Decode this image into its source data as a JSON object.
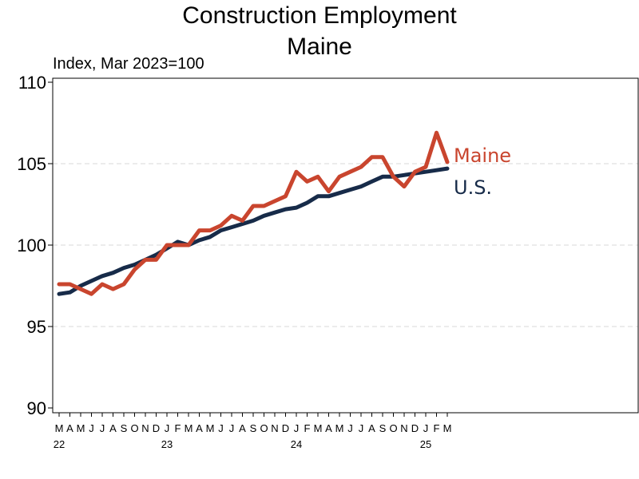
{
  "chart_data": {
    "type": "line",
    "title": "Construction Employment",
    "subtitle": "Maine",
    "ylabel": "Index, Mar 2023=100",
    "ylim": [
      90,
      110
    ],
    "yticks": [
      90,
      95,
      100,
      105,
      110
    ],
    "grid": "horizontal dashed",
    "x_month_labels": [
      "M",
      "A",
      "M",
      "J",
      "J",
      "A",
      "S",
      "O",
      "N",
      "D",
      "J",
      "F",
      "M",
      "A",
      "M",
      "J",
      "J",
      "A",
      "S",
      "O",
      "N",
      "D",
      "J",
      "F",
      "M",
      "A",
      "M",
      "J",
      "J",
      "A",
      "S",
      "O",
      "N",
      "D",
      "J",
      "F",
      "M"
    ],
    "x_year_labels": [
      {
        "label": "22",
        "index": 0
      },
      {
        "label": "23",
        "index": 10
      },
      {
        "label": "24",
        "index": 22
      },
      {
        "label": "25",
        "index": 34
      }
    ],
    "series": [
      {
        "name": "Maine",
        "color": "#C9452E",
        "values": [
          97.6,
          97.6,
          97.3,
          97.0,
          97.6,
          97.3,
          97.6,
          98.5,
          99.1,
          99.1,
          100.0,
          100.0,
          100.0,
          100.9,
          100.9,
          101.2,
          101.8,
          101.5,
          102.4,
          102.4,
          102.7,
          103.0,
          104.5,
          103.9,
          104.2,
          103.3,
          104.2,
          104.5,
          104.8,
          105.4,
          105.4,
          104.2,
          103.6,
          104.5,
          104.8,
          106.9,
          105.1
        ]
      },
      {
        "name": "U.S.",
        "color": "#172B49",
        "values": [
          97.0,
          97.1,
          97.5,
          97.8,
          98.1,
          98.3,
          98.6,
          98.8,
          99.1,
          99.4,
          99.8,
          100.2,
          100.0,
          100.3,
          100.5,
          100.9,
          101.1,
          101.3,
          101.5,
          101.8,
          102.0,
          102.2,
          102.3,
          102.6,
          103.0,
          103.0,
          103.2,
          103.4,
          103.6,
          103.9,
          104.2,
          104.2,
          104.3,
          104.4,
          104.5,
          104.6,
          104.7
        ]
      }
    ]
  }
}
